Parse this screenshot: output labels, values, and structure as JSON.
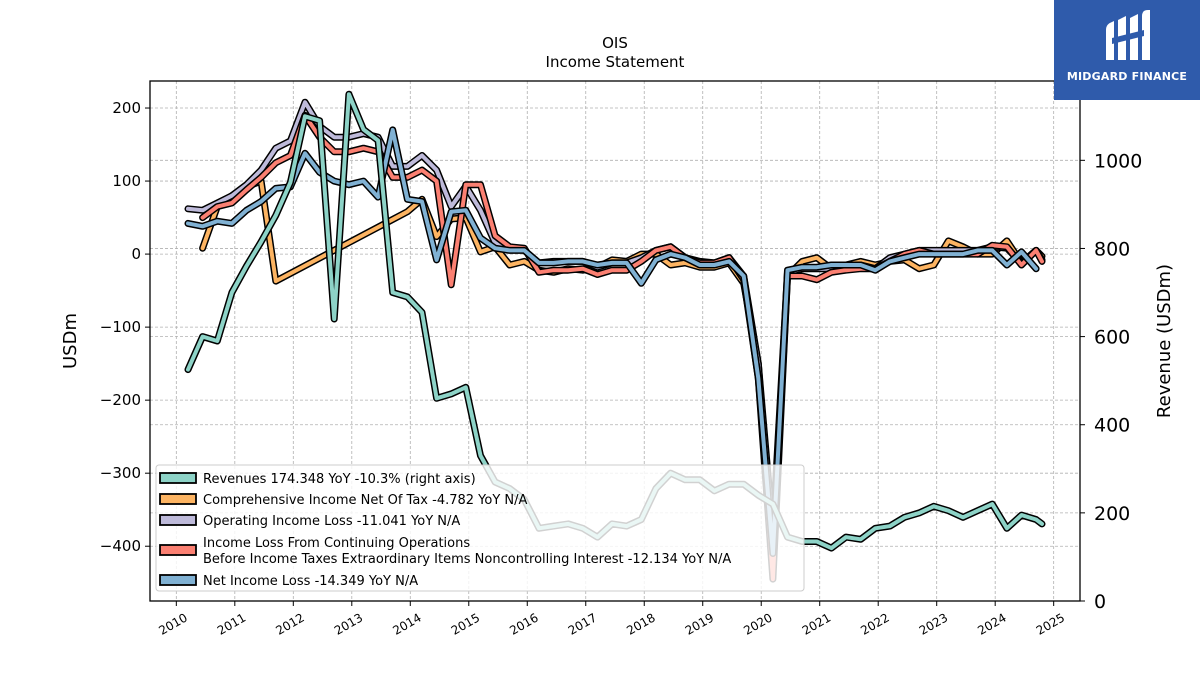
{
  "chart_data": {
    "type": "line",
    "title": "OIS",
    "subtitle": "Income Statement",
    "ylabel": "USDm",
    "y2label": "Revenue (USDm)",
    "ylim": [
      -475,
      237
    ],
    "y2lim": [
      0,
      1180
    ],
    "yticks": [
      200,
      100,
      0,
      -100,
      -200,
      -300,
      -400
    ],
    "ytick_labels": [
      "200",
      "100",
      "0",
      "−100",
      "−200",
      "−300",
      "−400"
    ],
    "y2ticks": [
      0,
      200,
      400,
      600,
      800,
      1000
    ],
    "y2tick_labels": [
      "0",
      "200",
      "400",
      "600",
      "800",
      "1000"
    ],
    "xlim": [
      2009.55,
      2025.45
    ],
    "xticks": [
      2010,
      2011,
      2012,
      2013,
      2014,
      2015,
      2016,
      2017,
      2018,
      2019,
      2020,
      2021,
      2022,
      2023,
      2024,
      2025
    ],
    "xtick_labels": [
      "2010",
      "2011",
      "2012",
      "2013",
      "2014",
      "2015",
      "2016",
      "2017",
      "2018",
      "2019",
      "2020",
      "2021",
      "2022",
      "2023",
      "2024",
      "2025"
    ],
    "grid": true,
    "legend_position": "lower-left",
    "series": [
      {
        "name": "Revenues  174.348 YoY -10.3% (right axis)",
        "axis": "right",
        "color": "#8dd3c7",
        "points": [
          [
            2010.2,
            525
          ],
          [
            2010.45,
            600
          ],
          [
            2010.7,
            590
          ],
          [
            2010.95,
            700
          ],
          [
            2011.2,
            760
          ],
          [
            2011.45,
            815
          ],
          [
            2011.7,
            875
          ],
          [
            2011.95,
            950
          ],
          [
            2012.2,
            1100
          ],
          [
            2012.45,
            1090
          ],
          [
            2012.7,
            640
          ],
          [
            2012.95,
            1150
          ],
          [
            2013.2,
            1070
          ],
          [
            2013.45,
            1045
          ],
          [
            2013.7,
            700
          ],
          [
            2013.95,
            690
          ],
          [
            2014.2,
            655
          ],
          [
            2014.45,
            460
          ],
          [
            2014.7,
            470
          ],
          [
            2014.95,
            485
          ],
          [
            2015.2,
            330
          ],
          [
            2015.45,
            270
          ],
          [
            2015.7,
            255
          ],
          [
            2015.95,
            230
          ],
          [
            2016.2,
            165
          ],
          [
            2016.45,
            170
          ],
          [
            2016.7,
            175
          ],
          [
            2016.95,
            165
          ],
          [
            2017.2,
            145
          ],
          [
            2017.45,
            175
          ],
          [
            2017.7,
            170
          ],
          [
            2017.95,
            185
          ],
          [
            2018.2,
            255
          ],
          [
            2018.45,
            290
          ],
          [
            2018.7,
            275
          ],
          [
            2018.95,
            275
          ],
          [
            2019.2,
            250
          ],
          [
            2019.45,
            265
          ],
          [
            2019.7,
            265
          ],
          [
            2019.95,
            240
          ],
          [
            2020.2,
            220
          ],
          [
            2020.45,
            145
          ],
          [
            2020.7,
            135
          ],
          [
            2020.95,
            135
          ],
          [
            2021.2,
            120
          ],
          [
            2021.45,
            145
          ],
          [
            2021.7,
            140
          ],
          [
            2021.95,
            165
          ],
          [
            2022.2,
            170
          ],
          [
            2022.45,
            190
          ],
          [
            2022.7,
            200
          ],
          [
            2022.95,
            215
          ],
          [
            2023.2,
            205
          ],
          [
            2023.45,
            190
          ],
          [
            2023.7,
            205
          ],
          [
            2023.95,
            220
          ],
          [
            2024.2,
            165
          ],
          [
            2024.45,
            195
          ],
          [
            2024.7,
            185
          ],
          [
            2024.8,
            175
          ]
        ]
      },
      {
        "name": "Comprehensive Income Net Of Tax  -4.782 YoY N/A",
        "axis": "left",
        "color": "#fdb462",
        "points": [
          [
            2010.45,
            8
          ],
          [
            2010.7,
            65
          ],
          [
            2010.95,
            80
          ],
          [
            2011.2,
            92
          ],
          [
            2011.45,
            100
          ],
          [
            2011.7,
            -37
          ],
          [
            2013.95,
            58
          ],
          [
            2014.2,
            75
          ],
          [
            2014.45,
            24
          ],
          [
            2014.7,
            48
          ],
          [
            2014.95,
            50
          ],
          [
            2015.2,
            3
          ],
          [
            2015.45,
            10
          ],
          [
            2015.7,
            -15
          ],
          [
            2015.95,
            -10
          ],
          [
            2016.2,
            -22
          ],
          [
            2016.45,
            -25
          ],
          [
            2016.7,
            -20
          ],
          [
            2016.95,
            -22
          ],
          [
            2017.2,
            -18
          ],
          [
            2017.45,
            -8
          ],
          [
            2017.7,
            -10
          ],
          [
            2017.95,
            0
          ],
          [
            2018.2,
            0
          ],
          [
            2018.45,
            -15
          ],
          [
            2018.7,
            -12
          ],
          [
            2018.95,
            -18
          ],
          [
            2019.2,
            -18
          ],
          [
            2019.45,
            -12
          ],
          [
            2019.7,
            -40
          ],
          [
            2019.95,
            -150
          ],
          [
            2020.2,
            -420
          ],
          [
            2020.45,
            -30
          ],
          [
            2020.7,
            -10
          ],
          [
            2020.95,
            -5
          ],
          [
            2021.2,
            -20
          ],
          [
            2021.45,
            -15
          ],
          [
            2021.7,
            -10
          ],
          [
            2021.95,
            -15
          ],
          [
            2022.2,
            -10
          ],
          [
            2022.45,
            -8
          ],
          [
            2022.7,
            -20
          ],
          [
            2022.95,
            -15
          ],
          [
            2023.2,
            18
          ],
          [
            2023.45,
            10
          ],
          [
            2023.7,
            0
          ],
          [
            2023.95,
            0
          ],
          [
            2024.2,
            18
          ],
          [
            2024.45,
            -12
          ],
          [
            2024.7,
            5
          ],
          [
            2024.8,
            -3
          ]
        ]
      },
      {
        "name": "Operating Income Loss  -11.041 YoY N/A",
        "axis": "left",
        "color": "#bebada",
        "points": [
          [
            2010.2,
            62
          ],
          [
            2010.45,
            60
          ],
          [
            2010.7,
            70
          ],
          [
            2010.95,
            80
          ],
          [
            2011.2,
            95
          ],
          [
            2011.45,
            115
          ],
          [
            2011.7,
            145
          ],
          [
            2011.95,
            155
          ],
          [
            2012.2,
            208
          ],
          [
            2012.45,
            175
          ],
          [
            2012.7,
            160
          ],
          [
            2012.95,
            160
          ],
          [
            2013.2,
            165
          ],
          [
            2013.45,
            160
          ],
          [
            2013.7,
            120
          ],
          [
            2013.95,
            120
          ],
          [
            2014.2,
            135
          ],
          [
            2014.45,
            115
          ],
          [
            2014.7,
            65
          ],
          [
            2014.95,
            93
          ],
          [
            2015.2,
            60
          ],
          [
            2015.45,
            15
          ],
          [
            2015.7,
            10
          ],
          [
            2015.95,
            5
          ],
          [
            2016.2,
            -12
          ],
          [
            2016.45,
            -10
          ],
          [
            2016.7,
            -10
          ],
          [
            2016.95,
            -10
          ],
          [
            2017.2,
            -18
          ],
          [
            2017.45,
            -12
          ],
          [
            2017.7,
            -12
          ],
          [
            2017.95,
            -5
          ],
          [
            2018.2,
            5
          ],
          [
            2018.45,
            10
          ],
          [
            2018.7,
            -5
          ],
          [
            2018.95,
            -10
          ],
          [
            2019.2,
            -12
          ],
          [
            2019.45,
            -5
          ],
          [
            2019.7,
            -30
          ],
          [
            2019.95,
            -150
          ],
          [
            2020.2,
            -380
          ],
          [
            2020.45,
            -25
          ],
          [
            2020.7,
            -20
          ],
          [
            2020.95,
            -20
          ],
          [
            2021.2,
            -20
          ],
          [
            2021.45,
            -20
          ],
          [
            2021.7,
            -15
          ],
          [
            2021.95,
            -20
          ],
          [
            2022.2,
            -5
          ],
          [
            2022.45,
            0
          ],
          [
            2022.7,
            5
          ],
          [
            2022.95,
            5
          ],
          [
            2023.2,
            5
          ],
          [
            2023.45,
            5
          ],
          [
            2023.7,
            5
          ],
          [
            2023.95,
            10
          ],
          [
            2024.2,
            8
          ],
          [
            2024.45,
            -12
          ],
          [
            2024.7,
            5
          ],
          [
            2024.8,
            -8
          ]
        ]
      },
      {
        "name": "Income Loss From Continuing Operations\nBefore Income Taxes Extraordinary Items Noncontrolling Interest  -12.134 YoY N/A",
        "axis": "left",
        "color": "#fb8072",
        "points": [
          [
            2010.45,
            50
          ],
          [
            2010.7,
            65
          ],
          [
            2010.95,
            70
          ],
          [
            2011.2,
            88
          ],
          [
            2011.45,
            105
          ],
          [
            2011.7,
            125
          ],
          [
            2011.95,
            135
          ],
          [
            2012.2,
            190
          ],
          [
            2012.45,
            160
          ],
          [
            2012.7,
            140
          ],
          [
            2012.95,
            140
          ],
          [
            2013.2,
            145
          ],
          [
            2013.45,
            140
          ],
          [
            2013.7,
            105
          ],
          [
            2013.95,
            105
          ],
          [
            2014.2,
            115
          ],
          [
            2014.45,
            100
          ],
          [
            2014.7,
            -42
          ],
          [
            2014.95,
            95
          ],
          [
            2015.2,
            95
          ],
          [
            2015.45,
            25
          ],
          [
            2015.7,
            10
          ],
          [
            2015.95,
            8
          ],
          [
            2016.2,
            -25
          ],
          [
            2016.45,
            -22
          ],
          [
            2016.7,
            -22
          ],
          [
            2016.95,
            -20
          ],
          [
            2017.2,
            -28
          ],
          [
            2017.45,
            -22
          ],
          [
            2017.7,
            -22
          ],
          [
            2017.95,
            -10
          ],
          [
            2018.2,
            5
          ],
          [
            2018.45,
            10
          ],
          [
            2018.7,
            -5
          ],
          [
            2018.95,
            -12
          ],
          [
            2019.2,
            -12
          ],
          [
            2019.45,
            -5
          ],
          [
            2019.7,
            -35
          ],
          [
            2019.95,
            -170
          ],
          [
            2020.2,
            -445
          ],
          [
            2020.45,
            -30
          ],
          [
            2020.7,
            -30
          ],
          [
            2020.95,
            -35
          ],
          [
            2021.2,
            -25
          ],
          [
            2021.45,
            -22
          ],
          [
            2021.7,
            -20
          ],
          [
            2021.95,
            -20
          ],
          [
            2022.2,
            -10
          ],
          [
            2022.45,
            0
          ],
          [
            2022.7,
            5
          ],
          [
            2022.95,
            0
          ],
          [
            2023.2,
            0
          ],
          [
            2023.45,
            0
          ],
          [
            2023.7,
            0
          ],
          [
            2023.95,
            12
          ],
          [
            2024.2,
            10
          ],
          [
            2024.45,
            -15
          ],
          [
            2024.7,
            5
          ],
          [
            2024.8,
            -10
          ]
        ]
      },
      {
        "name": "Net Income Loss  -14.349 YoY N/A",
        "axis": "left",
        "color": "#80b1d3",
        "points": [
          [
            2010.2,
            42
          ],
          [
            2010.45,
            38
          ],
          [
            2010.7,
            45
          ],
          [
            2010.95,
            42
          ],
          [
            2011.2,
            60
          ],
          [
            2011.45,
            72
          ],
          [
            2011.7,
            90
          ],
          [
            2011.95,
            92
          ],
          [
            2012.2,
            138
          ],
          [
            2012.45,
            112
          ],
          [
            2012.7,
            100
          ],
          [
            2012.95,
            95
          ],
          [
            2013.2,
            100
          ],
          [
            2013.45,
            78
          ],
          [
            2013.7,
            170
          ],
          [
            2013.95,
            75
          ],
          [
            2014.2,
            72
          ],
          [
            2014.45,
            -8
          ],
          [
            2014.7,
            58
          ],
          [
            2014.95,
            60
          ],
          [
            2015.2,
            22
          ],
          [
            2015.45,
            8
          ],
          [
            2015.7,
            5
          ],
          [
            2015.95,
            5
          ],
          [
            2016.2,
            -12
          ],
          [
            2016.45,
            -12
          ],
          [
            2016.7,
            -10
          ],
          [
            2016.95,
            -10
          ],
          [
            2017.2,
            -15
          ],
          [
            2017.45,
            -12
          ],
          [
            2017.7,
            -12
          ],
          [
            2017.95,
            -40
          ],
          [
            2018.2,
            -8
          ],
          [
            2018.45,
            0
          ],
          [
            2018.7,
            -5
          ],
          [
            2018.95,
            -15
          ],
          [
            2019.2,
            -15
          ],
          [
            2019.45,
            -10
          ],
          [
            2019.7,
            -30
          ],
          [
            2019.95,
            -170
          ],
          [
            2020.2,
            -410
          ],
          [
            2020.45,
            -22
          ],
          [
            2020.7,
            -18
          ],
          [
            2020.95,
            -18
          ],
          [
            2021.2,
            -15
          ],
          [
            2021.45,
            -15
          ],
          [
            2021.7,
            -15
          ],
          [
            2021.95,
            -22
          ],
          [
            2022.2,
            -10
          ],
          [
            2022.45,
            -5
          ],
          [
            2022.7,
            0
          ],
          [
            2022.95,
            0
          ],
          [
            2023.2,
            0
          ],
          [
            2023.45,
            0
          ],
          [
            2023.7,
            5
          ],
          [
            2023.95,
            5
          ],
          [
            2024.2,
            -15
          ],
          [
            2024.45,
            3
          ],
          [
            2024.7,
            -20
          ]
        ]
      }
    ]
  },
  "logo": {
    "text": "MIDGARD FINANCE"
  }
}
